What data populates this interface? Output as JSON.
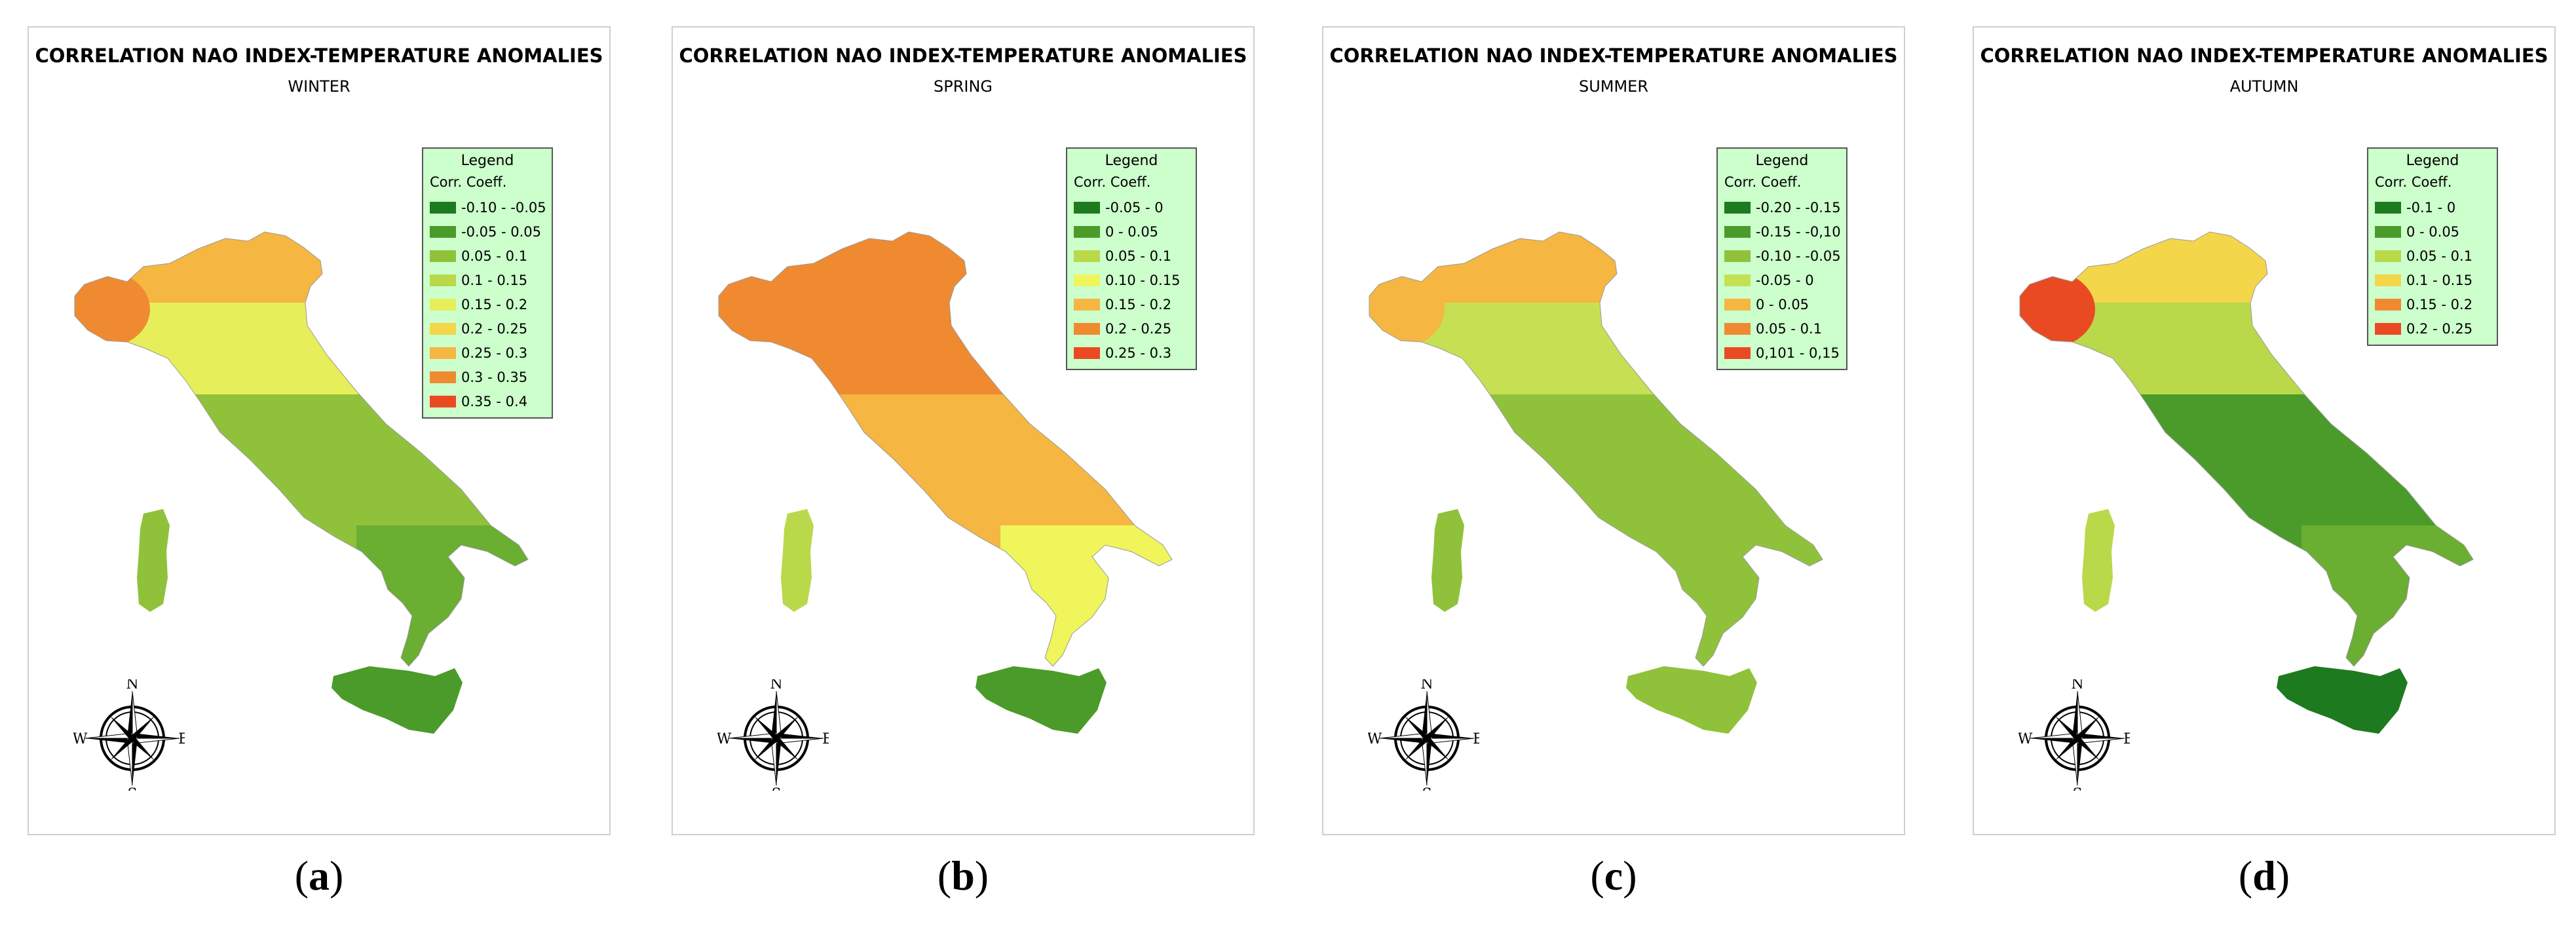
{
  "map_title": "CORRELATION NAO INDEX-TEMPERATURE ANOMALIES",
  "legend_title": "Legend",
  "legend_subtitle": "Corr. Coeff.",
  "compass": {
    "n": "N",
    "s": "S",
    "e": "E",
    "w": "W"
  },
  "panels": [
    {
      "season": "WINTER",
      "caption": "a",
      "legend": [
        {
          "label": "-0.10 - -0.05",
          "color": "#1e7a1e"
        },
        {
          "label": "-0.05 - 0.05",
          "color": "#4b9b2a"
        },
        {
          "label": "0.05 - 0.1",
          "color": "#8fc23a"
        },
        {
          "label": "0.1 - 0.15",
          "color": "#b9d94a"
        },
        {
          "label": "0.15 - 0.2",
          "color": "#e6ef5a"
        },
        {
          "label": "0.2 - 0.25",
          "color": "#f3d64a"
        },
        {
          "label": "0.25 - 0.3",
          "color": "#f5b642"
        },
        {
          "label": "0.3 - 0.35",
          "color": "#f08a30"
        },
        {
          "label": "0.35 - 0.4",
          "color": "#ea4a22"
        }
      ],
      "regions": {
        "north": "#f5b642",
        "northwest": "#f08a30",
        "center": "#e6ef5a",
        "south": "#8fc23a",
        "calabria": "#6aae32",
        "sicily": "#4b9b2a",
        "sardinia": "#8fc23a"
      }
    },
    {
      "season": "SPRING",
      "caption": "b",
      "legend": [
        {
          "label": "-0.05 - 0",
          "color": "#1e7a1e"
        },
        {
          "label": "0 - 0.05",
          "color": "#4b9b2a"
        },
        {
          "label": "0.05 - 0.1",
          "color": "#b9d94a"
        },
        {
          "label": "0.10 - 0.15",
          "color": "#eff55a"
        },
        {
          "label": "0.15 - 0.2",
          "color": "#f5b642"
        },
        {
          "label": "0.2 - 0.25",
          "color": "#f08a30"
        },
        {
          "label": "0.25 - 0.3",
          "color": "#ea4a22"
        }
      ],
      "regions": {
        "north": "#f08a30",
        "northwest": "#f08a30",
        "center": "#f08a30",
        "south": "#f5b642",
        "calabria": "#eff55a",
        "sicily": "#4b9b2a",
        "sardinia": "#b9d94a"
      }
    },
    {
      "season": "SUMMER",
      "caption": "c",
      "legend": [
        {
          "label": "-0.20 - -0.15",
          "color": "#1e7a1e"
        },
        {
          "label": "-0.15 - -0,10",
          "color": "#4b9b2a"
        },
        {
          "label": "-0.10 - -0.05",
          "color": "#8fc23a"
        },
        {
          "label": "-0.05 - 0",
          "color": "#c6e053"
        },
        {
          "label": "0 - 0.05",
          "color": "#f5b642"
        },
        {
          "label": "0.05 - 0.1",
          "color": "#f08a30"
        },
        {
          "label": "0,101 - 0,15",
          "color": "#ea4a22"
        }
      ],
      "regions": {
        "north": "#f5b642",
        "northwest": "#f5b642",
        "center": "#c6e053",
        "south": "#8fc23a",
        "calabria": "#8fc23a",
        "sicily": "#8fc23a",
        "sardinia": "#8fc23a"
      }
    },
    {
      "season": "AUTUMN",
      "caption": "d",
      "legend": [
        {
          "label": "-0.1 - 0",
          "color": "#1e7a1e"
        },
        {
          "label": "0 - 0.05",
          "color": "#4b9b2a"
        },
        {
          "label": "0.05 - 0.1",
          "color": "#b9d94a"
        },
        {
          "label": "0.1 - 0.15",
          "color": "#f3d64a"
        },
        {
          "label": "0.15 - 0.2",
          "color": "#f08a30"
        },
        {
          "label": "0.2 - 0.25",
          "color": "#ea4a22"
        }
      ],
      "regions": {
        "north": "#f3d64a",
        "northwest": "#ea4a22",
        "center": "#b9d94a",
        "south": "#4b9b2a",
        "calabria": "#6aae32",
        "sicily": "#1e7a1e",
        "sardinia": "#b9d94a"
      }
    }
  ]
}
